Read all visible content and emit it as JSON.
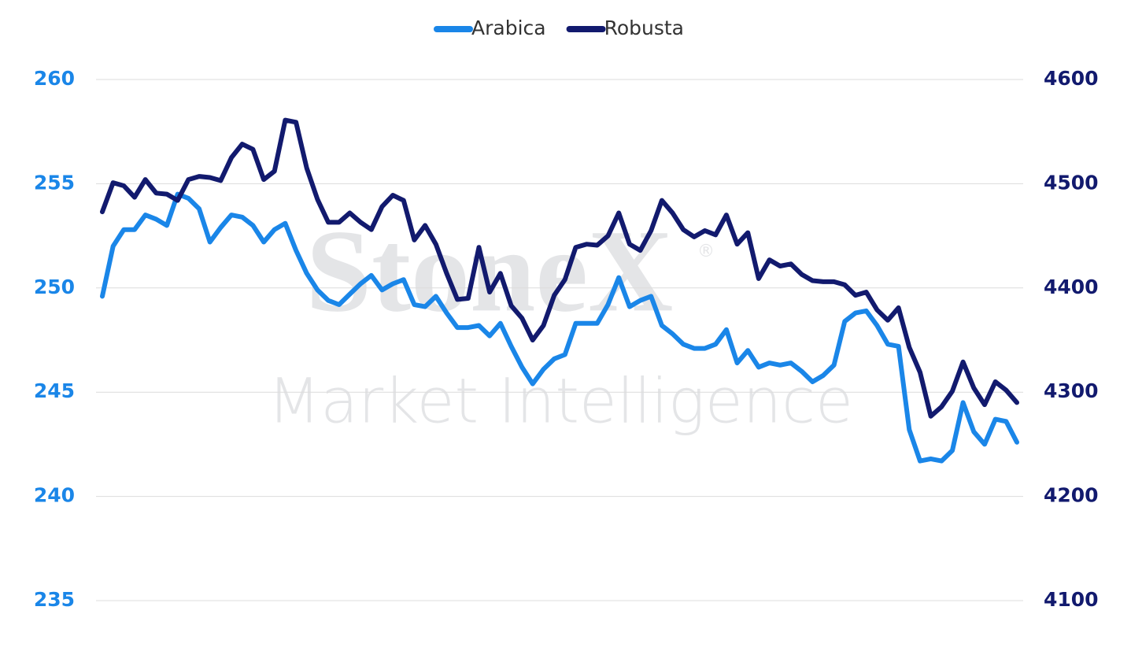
{
  "chart_data": {
    "type": "line",
    "watermark": {
      "brand": "StoneX",
      "registered": "®",
      "tagline": "Market Intelligence"
    },
    "legend": "top",
    "grid": true,
    "ylim": [
      235,
      260
    ],
    "yticks": [
      235,
      240,
      245,
      250,
      255,
      260
    ],
    "ycolor": "#1a86e8",
    "y2lim": [
      4100,
      4600
    ],
    "y2ticks": [
      4100,
      4200,
      4300,
      4400,
      4500,
      4600
    ],
    "y2color": "#121a6e",
    "series": [
      {
        "name": "Arabica",
        "color": "#1a86e8",
        "values": [
          249.6,
          252.0,
          252.8,
          252.8,
          253.5,
          253.3,
          253.0,
          254.5,
          254.3,
          253.8,
          252.2,
          252.9,
          253.5,
          253.4,
          253.0,
          252.2,
          252.8,
          253.1,
          251.8,
          250.7,
          249.9,
          249.4,
          249.2,
          249.7,
          250.2,
          250.6,
          249.9,
          250.2,
          250.4,
          249.2,
          249.1,
          249.6,
          248.8,
          248.1,
          248.1,
          248.2,
          247.7,
          248.3,
          247.2,
          246.2,
          245.4,
          246.1,
          246.6,
          246.8,
          248.3,
          248.3,
          248.3,
          249.2,
          250.5,
          249.1,
          249.4,
          249.6,
          248.2,
          247.8,
          247.3,
          247.1,
          247.1,
          247.3,
          248.0,
          246.4,
          247.0,
          246.2,
          246.4,
          246.3,
          246.4,
          246.0,
          245.5,
          245.8,
          246.3,
          248.4,
          248.8,
          248.9,
          248.2,
          247.3,
          247.2,
          243.2,
          241.7,
          241.8,
          241.7,
          242.2,
          244.5,
          243.1,
          242.5,
          243.7,
          243.6,
          242.6
        ]
      },
      {
        "name": "Robusta",
        "color": "#121a6e",
        "axis": "y2",
        "values": [
          4473,
          4501,
          4498,
          4487,
          4504,
          4491,
          4490,
          4484,
          4504,
          4507,
          4506,
          4503,
          4525,
          4538,
          4533,
          4504,
          4512,
          4561,
          4559,
          4515,
          4485,
          4463,
          4463,
          4472,
          4463,
          4456,
          4478,
          4489,
          4484,
          4446,
          4460,
          4442,
          4414,
          4389,
          4390,
          4439,
          4396,
          4414,
          4383,
          4371,
          4350,
          4364,
          4393,
          4408,
          4439,
          4442,
          4441,
          4450,
          4472,
          4442,
          4436,
          4455,
          4484,
          4472,
          4456,
          4449,
          4455,
          4451,
          4470,
          4442,
          4453,
          4409,
          4427,
          4421,
          4423,
          4413,
          4407,
          4406,
          4406,
          4403,
          4393,
          4396,
          4379,
          4369,
          4381,
          4343,
          4319,
          4277,
          4286,
          4301,
          4329,
          4304,
          4288,
          4310,
          4302,
          4290
        ]
      }
    ]
  }
}
